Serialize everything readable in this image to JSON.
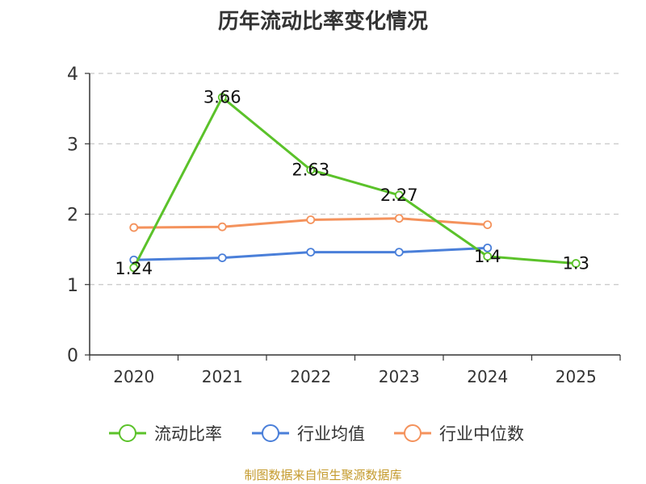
{
  "chart_data": {
    "type": "line",
    "title": "历年流动比率变化情况",
    "categories": [
      "2020",
      "2021",
      "2022",
      "2023",
      "2024",
      "2025"
    ],
    "ylim": [
      0,
      4
    ],
    "yticks": [
      "0",
      "1",
      "2",
      "3",
      "4"
    ],
    "grid": true,
    "legend_position": "bottom",
    "series": [
      {
        "name": "流动比率",
        "color": "#5bc22a",
        "values": [
          1.24,
          3.66,
          2.63,
          2.27,
          1.4,
          1.3
        ],
        "labels": [
          "1.24",
          "3.66",
          "2.63",
          "2.27",
          "1.4",
          "1.3"
        ]
      },
      {
        "name": "行业均值",
        "color": "#4a7fd9",
        "values": [
          1.35,
          1.38,
          1.46,
          1.46,
          1.52,
          null
        ]
      },
      {
        "name": "行业中位数",
        "color": "#f4925c",
        "values": [
          1.81,
          1.82,
          1.92,
          1.94,
          1.85,
          null
        ]
      }
    ]
  },
  "source_note": "制图数据来自恒生聚源数据库"
}
